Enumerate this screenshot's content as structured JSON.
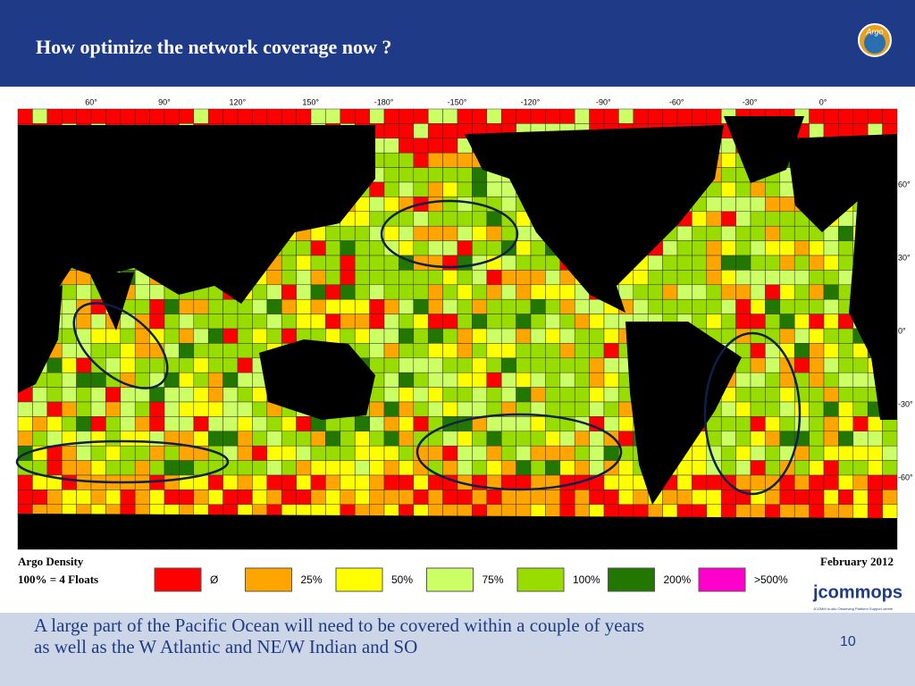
{
  "header": {
    "title": "How optimize the network coverage now ?",
    "logo": "Argo"
  },
  "map": {
    "lon_labels": [
      "60°",
      "90°",
      "120°",
      "150°",
      "-180°",
      "-150°",
      "-120°",
      "-90°",
      "-60°",
      "-30°",
      "0°"
    ],
    "lat_labels": [
      "60°",
      "30°",
      "0°",
      "-30°",
      "-60°"
    ],
    "legend": {
      "title": "Argo Density",
      "subtitle": "100% = 4 Floats",
      "date": "February 2012",
      "items": [
        {
          "label": "Ø",
          "color": "#ff0000"
        },
        {
          "label": "25%",
          "color": "#ffa500"
        },
        {
          "label": "50%",
          "color": "#ffff00"
        },
        {
          "label": "75%",
          "color": "#ccff66"
        },
        {
          "label": "100%",
          "color": "#99dd00"
        },
        {
          "label": "200%",
          "color": "#227700"
        },
        {
          "label": ">500%",
          "color": "#ff00cc"
        }
      ]
    }
  },
  "footer": {
    "logo": "jcommops",
    "logo_sub": "JCOMM in-situ Observing Platform Support centre",
    "lines": [
      "A large part of the Pacific Ocean will need to be covered within a couple of years",
      "as well as the W Atlantic and NE/W Indian and SO"
    ],
    "page": "10"
  }
}
